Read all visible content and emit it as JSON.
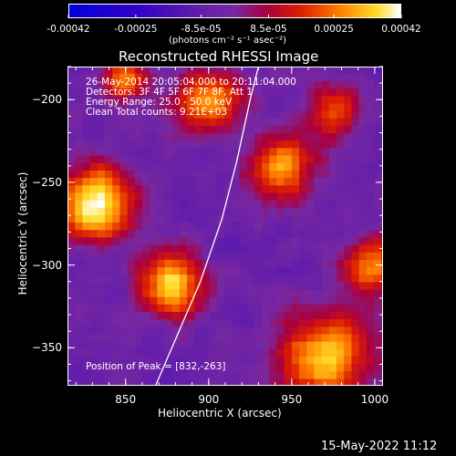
{
  "colorbar": {
    "ticks": [
      {
        "value": -0.00042,
        "label": "-0.00042"
      },
      {
        "value": -0.00025,
        "label": "-0.00025"
      },
      {
        "value": -8.5e-05,
        "label": "-8.5e-05"
      },
      {
        "value": 8.5e-05,
        "label": "8.5e-05"
      },
      {
        "value": 0.00025,
        "label": "0.00025"
      },
      {
        "value": 0.00042,
        "label": "0.00042"
      }
    ],
    "range": [
      -0.00042,
      0.00042
    ],
    "unit_label": "(photons cm⁻² s⁻¹ asec⁻²)"
  },
  "chart_data": {
    "type": "heatmap",
    "title": "Reconstructed RHESSI Image",
    "xlabel": "Heliocentric X (arcsec)",
    "ylabel": "Heliocentric Y (arcsec)",
    "xlim": [
      815,
      1005
    ],
    "ylim": [
      -373,
      -180
    ],
    "xticks": [
      {
        "value": 850,
        "label": "850"
      },
      {
        "value": 900,
        "label": "900"
      },
      {
        "value": 950,
        "label": "950"
      },
      {
        "value": 1000,
        "label": "1000"
      }
    ],
    "yticks": [
      {
        "value": -200,
        "label": "−200"
      },
      {
        "value": -250,
        "label": "−250"
      },
      {
        "value": -300,
        "label": "−300"
      },
      {
        "value": -350,
        "label": "−350"
      }
    ],
    "sources": [
      {
        "x": 832,
        "y": -263,
        "peak": 1.0,
        "sigma": 16
      },
      {
        "x": 878,
        "y": -312,
        "peak": 0.85,
        "sigma": 14
      },
      {
        "x": 970,
        "y": -355,
        "peak": 0.8,
        "sigma": 20
      },
      {
        "x": 945,
        "y": -240,
        "peak": 0.75,
        "sigma": 14
      },
      {
        "x": 900,
        "y": -200,
        "peak": 0.7,
        "sigma": 14
      },
      {
        "x": 850,
        "y": -188,
        "peak": 0.65,
        "sigma": 10
      },
      {
        "x": 998,
        "y": -300,
        "peak": 0.65,
        "sigma": 12
      },
      {
        "x": 975,
        "y": -205,
        "peak": 0.5,
        "sigma": 12
      }
    ],
    "limb": [
      [
        868,
        -373
      ],
      [
        880,
        -345
      ],
      [
        895,
        -310
      ],
      [
        908,
        -272
      ],
      [
        917,
        -237
      ],
      [
        925,
        -200
      ],
      [
        930,
        -180
      ]
    ]
  },
  "overlay": {
    "lines": [
      "26-May-2014 20:05:04.000 to 20:11:04.000",
      "Detectors: 3F 4F 5F 6F 7F 8F, Att 1",
      "Energy Range: 25.0 - 50.0 keV",
      "Clean     Total counts: 9.21E+03"
    ],
    "peak_label": "Position of Peak = [832,-263]"
  },
  "footer": {
    "timestamp": "15-May-2022 11:12"
  }
}
